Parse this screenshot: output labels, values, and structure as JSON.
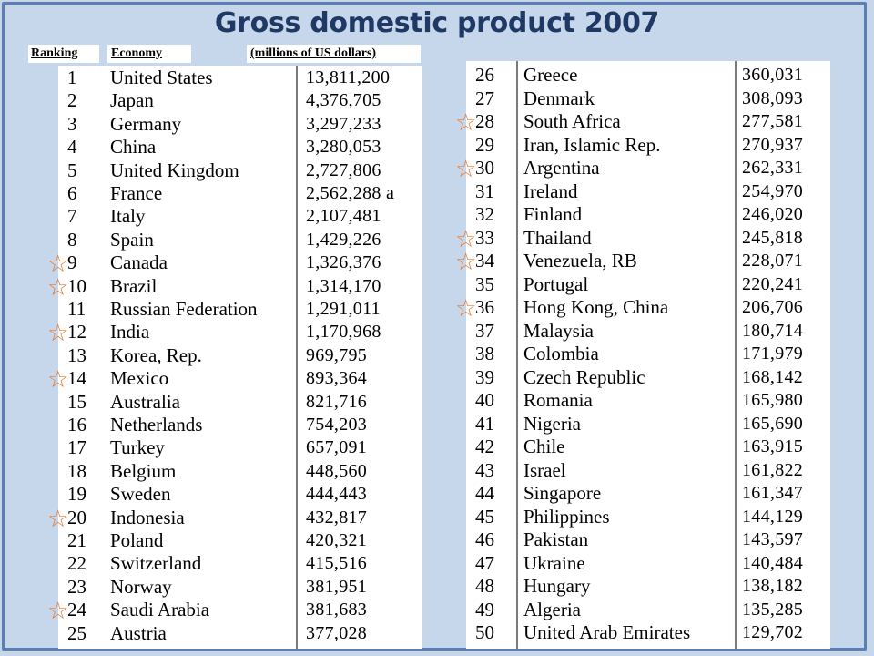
{
  "title": "Gross domestic product 2007",
  "headers": {
    "ranking": "Ranking",
    "economy": "Economy",
    "gdp": "(millions of US dollars)"
  },
  "left_table": [
    {
      "rank": "1",
      "economy": "United States",
      "gdp": "13,811,200"
    },
    {
      "rank": "2",
      "economy": "Japan",
      "gdp": "4,376,705"
    },
    {
      "rank": "3",
      "economy": "Germany",
      "gdp": "3,297,233"
    },
    {
      "rank": "4",
      "economy": "China",
      "gdp": "3,280,053"
    },
    {
      "rank": "5",
      "economy": "United Kingdom",
      "gdp": "2,727,806"
    },
    {
      "rank": "6",
      "economy": "France",
      "gdp": "2,562,288 a"
    },
    {
      "rank": "7",
      "economy": "Italy",
      "gdp": "2,107,481"
    },
    {
      "rank": "8",
      "economy": "Spain",
      "gdp": "1,429,226"
    },
    {
      "rank": "9",
      "economy": "Canada",
      "gdp": "1,326,376"
    },
    {
      "rank": "10",
      "economy": "Brazil",
      "gdp": "1,314,170"
    },
    {
      "rank": "11",
      "economy": "Russian Federation",
      "gdp": "1,291,011"
    },
    {
      "rank": "12",
      "economy": "India",
      "gdp": "1,170,968"
    },
    {
      "rank": "13",
      "economy": "Korea, Rep.",
      "gdp": "969,795"
    },
    {
      "rank": "14",
      "economy": "Mexico",
      "gdp": "893,364"
    },
    {
      "rank": "15",
      "economy": "Australia",
      "gdp": "821,716"
    },
    {
      "rank": "16",
      "economy": "Netherlands",
      "gdp": "754,203"
    },
    {
      "rank": "17",
      "economy": "Turkey",
      "gdp": "657,091"
    },
    {
      "rank": "18",
      "economy": "Belgium",
      "gdp": "448,560"
    },
    {
      "rank": "19",
      "economy": "Sweden",
      "gdp": "444,443"
    },
    {
      "rank": "20",
      "economy": "Indonesia",
      "gdp": "432,817"
    },
    {
      "rank": "21",
      "economy": "Poland",
      "gdp": "420,321"
    },
    {
      "rank": "22",
      "economy": "Switzerland",
      "gdp": "415,516"
    },
    {
      "rank": "23",
      "economy": "Norway",
      "gdp": "381,951"
    },
    {
      "rank": "24",
      "economy": "Saudi Arabia",
      "gdp": "381,683"
    },
    {
      "rank": "25",
      "economy": "Austria",
      "gdp": "377,028"
    }
  ],
  "right_table": [
    {
      "rank": "26",
      "economy": "Greece",
      "gdp": "360,031"
    },
    {
      "rank": "27",
      "economy": "Denmark",
      "gdp": "308,093"
    },
    {
      "rank": "28",
      "economy": "South Africa",
      "gdp": "277,581"
    },
    {
      "rank": "29",
      "economy": "Iran, Islamic Rep.",
      "gdp": "270,937"
    },
    {
      "rank": "30",
      "economy": "Argentina",
      "gdp": "262,331"
    },
    {
      "rank": "31",
      "economy": "Ireland",
      "gdp": "254,970"
    },
    {
      "rank": "32",
      "economy": "Finland",
      "gdp": "246,020"
    },
    {
      "rank": "33",
      "economy": "Thailand",
      "gdp": "245,818"
    },
    {
      "rank": "34",
      "economy": "Venezuela, RB",
      "gdp": "228,071"
    },
    {
      "rank": "35",
      "economy": "Portugal",
      "gdp": "220,241"
    },
    {
      "rank": "36",
      "economy": "Hong Kong, China",
      "gdp": "206,706"
    },
    {
      "rank": "37",
      "economy": "Malaysia",
      "gdp": "180,714"
    },
    {
      "rank": "38",
      "economy": "Colombia",
      "gdp": "171,979"
    },
    {
      "rank": "39",
      "economy": "Czech Republic",
      "gdp": "168,142"
    },
    {
      "rank": "40",
      "economy": "Romania",
      "gdp": "165,980"
    },
    {
      "rank": "41",
      "economy": "Nigeria",
      "gdp": "165,690"
    },
    {
      "rank": "42",
      "economy": "Chile",
      "gdp": "163,915"
    },
    {
      "rank": "43",
      "economy": "Israel",
      "gdp": "161,822"
    },
    {
      "rank": "44",
      "economy": "Singapore",
      "gdp": "161,347"
    },
    {
      "rank": "45",
      "economy": "Philippines",
      "gdp": "144,129"
    },
    {
      "rank": "46",
      "economy": "Pakistan",
      "gdp": "143,597"
    },
    {
      "rank": "47",
      "economy": "Ukraine",
      "gdp": "140,484"
    },
    {
      "rank": "48",
      "economy": "Hungary",
      "gdp": "138,182"
    },
    {
      "rank": "49",
      "economy": "Algeria",
      "gdp": "135,285"
    },
    {
      "rank": "50",
      "economy": "United Arab Emirates",
      "gdp": "129,702"
    }
  ],
  "starred_ranks": [
    "9",
    "10",
    "12",
    "14",
    "20",
    "24",
    "28",
    "30",
    "33",
    "34",
    "36"
  ],
  "colors": {
    "background": "#c6d7ec",
    "title": "#1f3864",
    "star": "#e8782a",
    "border": "#5b7fb4"
  },
  "icons": {
    "marker": "star-icon"
  }
}
